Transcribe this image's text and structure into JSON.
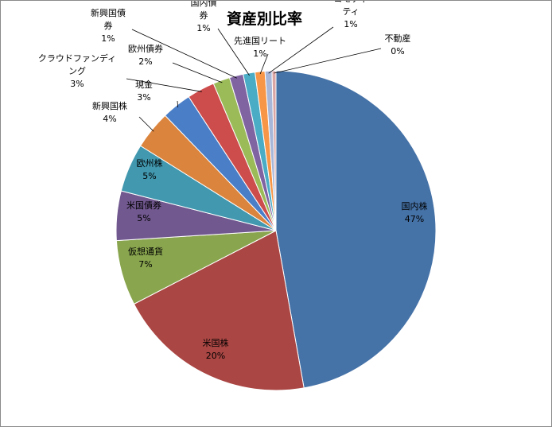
{
  "chart_data": {
    "type": "pie",
    "title": "資産別比率",
    "start_angle_deg": 0,
    "direction": "clockwise",
    "legend": "none",
    "slices": [
      {
        "name": "国内株",
        "label": [
          "国内株"
        ],
        "pct_label": "47%",
        "value": 47.2,
        "color": "#4572A7"
      },
      {
        "name": "米国株",
        "label": [
          "米国株"
        ],
        "pct_label": "20%",
        "value": 20.2,
        "color": "#AA4643"
      },
      {
        "name": "仮想通貨",
        "label": [
          "仮想通貨"
        ],
        "pct_label": "7%",
        "value": 6.6,
        "color": "#89A54E"
      },
      {
        "name": "米国債券",
        "label": [
          "米国債券"
        ],
        "pct_label": "5%",
        "value": 5.0,
        "color": "#71588F"
      },
      {
        "name": "欧州株",
        "label": [
          "欧州株"
        ],
        "pct_label": "5%",
        "value": 4.9,
        "color": "#4198AF"
      },
      {
        "name": "新興国株",
        "label": [
          "新興国株"
        ],
        "pct_label": "4%",
        "value": 3.9,
        "color": "#DB843D"
      },
      {
        "name": "現金",
        "label": [
          "現金"
        ],
        "pct_label": "3%",
        "value": 3.0,
        "color": "#4A7EC7"
      },
      {
        "name": "クラウドファンディング",
        "label": [
          "クラウドファンディ",
          "ング"
        ],
        "pct_label": "3%",
        "value": 2.8,
        "color": "#CD4C4C"
      },
      {
        "name": "欧州債券",
        "label": [
          "欧州債券"
        ],
        "pct_label": "2%",
        "value": 1.7,
        "color": "#9BBB59"
      },
      {
        "name": "新興国債券",
        "label": [
          "新興国債",
          "券"
        ],
        "pct_label": "1%",
        "value": 1.4,
        "color": "#8064A2"
      },
      {
        "name": "国内債券",
        "label": [
          "国内債",
          "券"
        ],
        "pct_label": "1%",
        "value": 1.2,
        "color": "#4BACC6"
      },
      {
        "name": "先進国リート",
        "label": [
          "先進国リート"
        ],
        "pct_label": "1%",
        "value": 1.0,
        "color": "#F79646"
      },
      {
        "name": "コモディティ",
        "label": [
          "コモディ",
          "ティ"
        ],
        "pct_label": "1%",
        "value": 0.7,
        "color": "#A8B6D8"
      },
      {
        "name": "不動産",
        "label": [
          "不動産"
        ],
        "pct_label": "0%",
        "value": 0.4,
        "color": "#D9A5A5"
      }
    ]
  }
}
